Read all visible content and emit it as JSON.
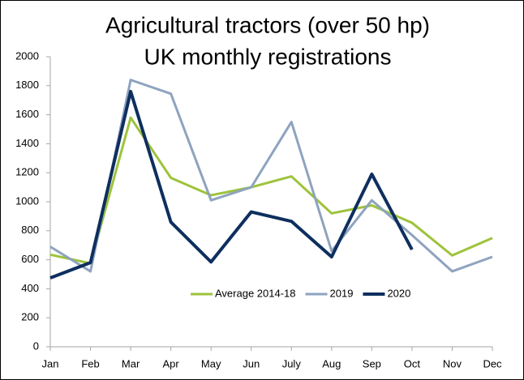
{
  "chart_data": {
    "type": "line",
    "title": "Agricultural tractors (over 50 hp)",
    "subtitle": "UK monthly registrations",
    "categories": [
      "Jan",
      "Feb",
      "Mar",
      "Apr",
      "May",
      "Jun",
      "July",
      "Aug",
      "Sep",
      "Oct",
      "Nov",
      "Dec"
    ],
    "series": [
      {
        "name": "Average 2014-18",
        "color": "#9dc33b",
        "width": 3,
        "values": [
          635,
          575,
          1580,
          1165,
          1045,
          1100,
          1175,
          920,
          975,
          855,
          630,
          750
        ]
      },
      {
        "name": "2019",
        "color": "#8ea3bf",
        "width": 3,
        "values": [
          690,
          520,
          1840,
          1745,
          1010,
          1100,
          1550,
          660,
          1010,
          770,
          520,
          620
        ]
      },
      {
        "name": "2020",
        "color": "#0e2f5e",
        "width": 4,
        "values": [
          475,
          580,
          1760,
          860,
          585,
          930,
          865,
          620,
          1190,
          670,
          null,
          null
        ]
      }
    ],
    "ylim": [
      0,
      2000
    ],
    "yticks": [
      0,
      200,
      400,
      600,
      800,
      1000,
      1200,
      1400,
      1600,
      1800,
      2000
    ],
    "grid": false,
    "legend": "bottom"
  }
}
